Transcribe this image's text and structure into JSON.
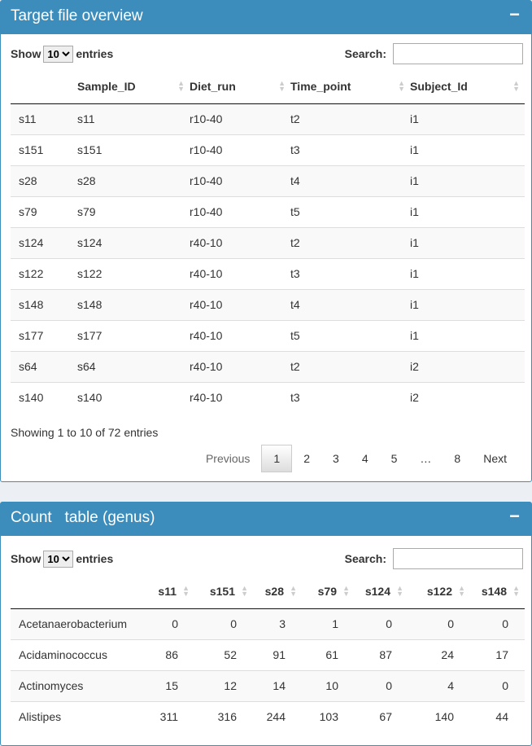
{
  "box1": {
    "title": "Target file overview",
    "collapse": "−",
    "show": "Show",
    "entries_value": "10",
    "entries": "entries",
    "search_label": "Search:",
    "search_value": "",
    "columns": [
      "",
      "Sample_ID",
      "Diet_run",
      "Time_point",
      "Subject_Id"
    ],
    "rows": [
      [
        "s11",
        "s11",
        "r10-40",
        "t2",
        "i1"
      ],
      [
        "s151",
        "s151",
        "r10-40",
        "t3",
        "i1"
      ],
      [
        "s28",
        "s28",
        "r10-40",
        "t4",
        "i1"
      ],
      [
        "s79",
        "s79",
        "r10-40",
        "t5",
        "i1"
      ],
      [
        "s124",
        "s124",
        "r40-10",
        "t2",
        "i1"
      ],
      [
        "s122",
        "s122",
        "r40-10",
        "t3",
        "i1"
      ],
      [
        "s148",
        "s148",
        "r40-10",
        "t4",
        "i1"
      ],
      [
        "s177",
        "s177",
        "r40-10",
        "t5",
        "i1"
      ],
      [
        "s64",
        "s64",
        "r40-10",
        "t2",
        "i2"
      ],
      [
        "s140",
        "s140",
        "r40-10",
        "t3",
        "i2"
      ]
    ],
    "info": "Showing 1 to 10 of 72 entries",
    "pager": [
      "Previous",
      "1",
      "2",
      "3",
      "4",
      "5",
      "…",
      "8",
      "Next"
    ]
  },
  "box2": {
    "title": "Count   table (genus)",
    "collapse": "−",
    "show": "Show",
    "entries_value": "10",
    "entries": "entries",
    "search_label": "Search:",
    "search_value": "",
    "columns": [
      "",
      "s11",
      "s151",
      "s28",
      "s79",
      "s124",
      "s122",
      "s148"
    ],
    "rows": [
      [
        "Acetanaerobacterium",
        "0",
        "0",
        "3",
        "1",
        "0",
        "0",
        "0"
      ],
      [
        "Acidaminococcus",
        "86",
        "52",
        "91",
        "61",
        "87",
        "24",
        "17"
      ],
      [
        "Actinomyces",
        "15",
        "12",
        "14",
        "10",
        "0",
        "4",
        "0"
      ],
      [
        "Alistipes",
        "311",
        "316",
        "244",
        "103",
        "67",
        "140",
        "44"
      ]
    ]
  },
  "colors": {
    "header": "#3c8dbc",
    "background": "#ecf0f5"
  }
}
